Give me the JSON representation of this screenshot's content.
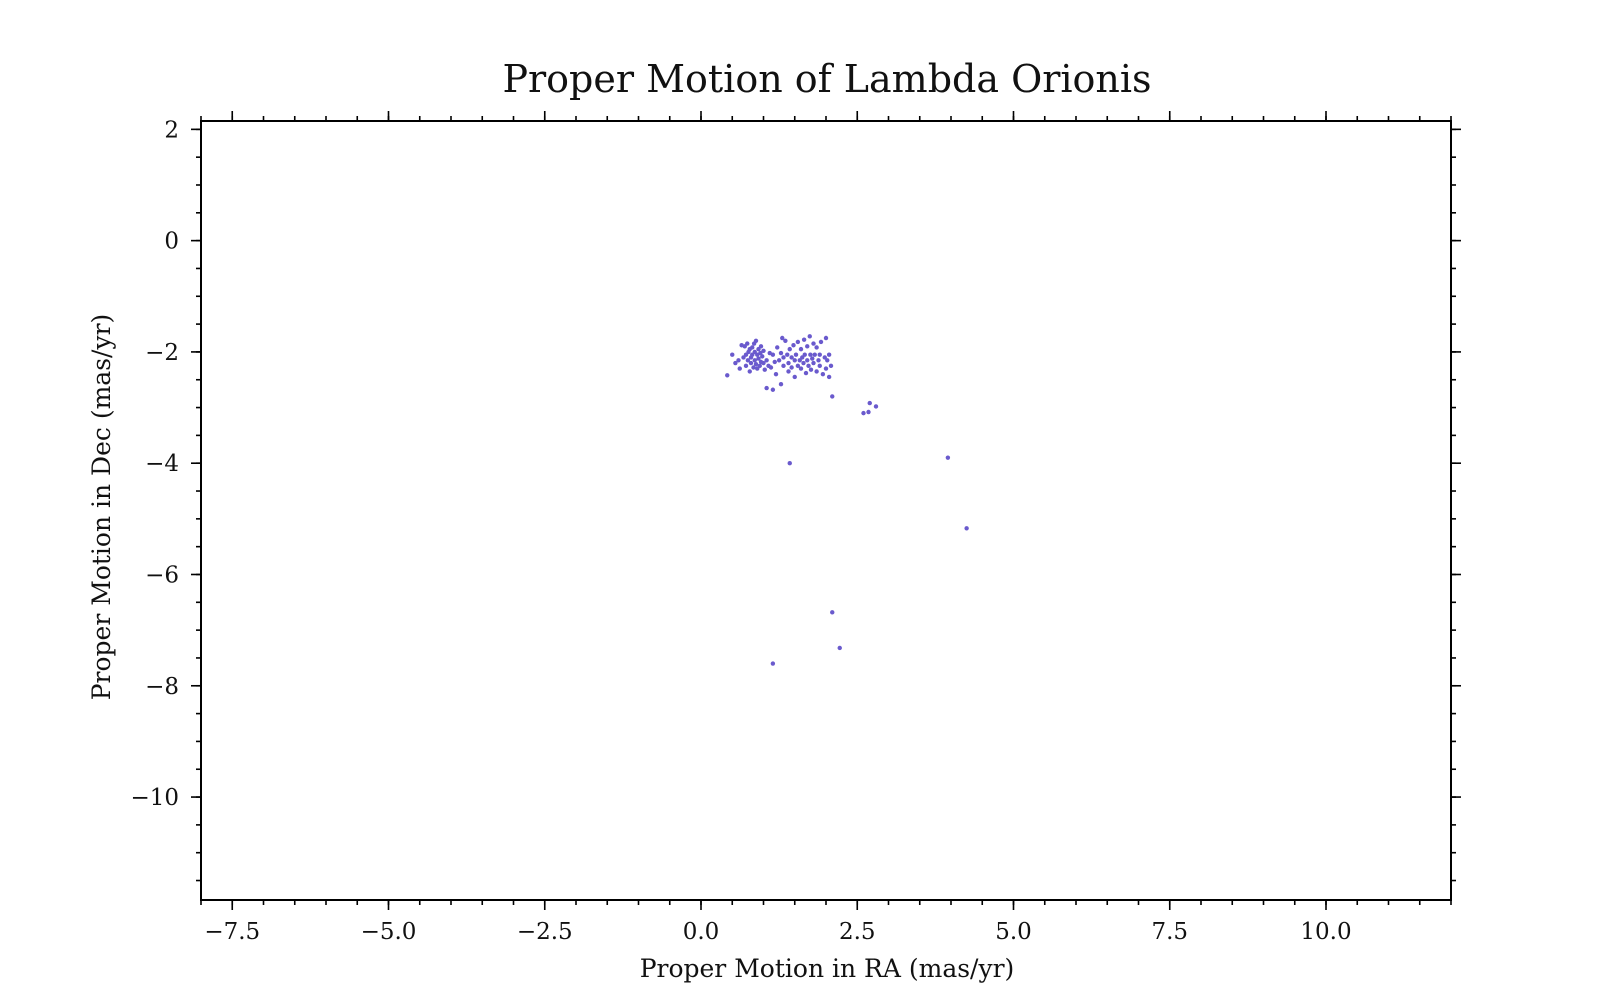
{
  "chart_data": {
    "type": "scatter",
    "title": "Proper Motion of Lambda Orionis",
    "xlabel": "Proper Motion in RA (mas/yr)",
    "ylabel": "Proper Motion in Dec (mas/yr)",
    "xlim": [
      -8.0,
      12.0
    ],
    "ylim": [
      -11.85,
      2.15
    ],
    "x_ticks": [
      -7.5,
      -5.0,
      -2.5,
      0.0,
      2.5,
      5.0,
      7.5,
      10.0
    ],
    "x_tick_labels": [
      "−7.5",
      "−5.0",
      "−2.5",
      "0.0",
      "2.5",
      "5.0",
      "7.5",
      "10.0"
    ],
    "x_minor_step": 0.5,
    "y_ticks": [
      2,
      0,
      -2,
      -4,
      -6,
      -8,
      -10
    ],
    "y_tick_labels": [
      "2",
      "0",
      "−2",
      "−4",
      "−6",
      "−8",
      "−10"
    ],
    "y_minor_step": 0.5,
    "grid": false,
    "marker_color": "#6a5acd",
    "series": [
      {
        "x": [
          0.42,
          0.5,
          0.55,
          0.6,
          0.62,
          0.65,
          0.68,
          0.7,
          0.72,
          0.72,
          0.74,
          0.75,
          0.76,
          0.78,
          0.78,
          0.8,
          0.8,
          0.82,
          0.82,
          0.84,
          0.85,
          0.86,
          0.86,
          0.88,
          0.88,
          0.9,
          0.9,
          0.92,
          0.92,
          0.94,
          0.95,
          0.96,
          0.96,
          0.98,
          1.0,
          1.0,
          1.02,
          1.05,
          1.08,
          1.1,
          1.12,
          1.15,
          1.18,
          1.2,
          1.22,
          1.25,
          1.28,
          1.3,
          1.32,
          1.32,
          1.35,
          1.38,
          1.4,
          1.4,
          1.42,
          1.45,
          1.45,
          1.48,
          1.5,
          1.5,
          1.52,
          1.55,
          1.55,
          1.58,
          1.6,
          1.6,
          1.62,
          1.64,
          1.65,
          1.66,
          1.68,
          1.7,
          1.7,
          1.72,
          1.74,
          1.75,
          1.76,
          1.78,
          1.8,
          1.8,
          1.82,
          1.85,
          1.85,
          1.88,
          1.9,
          1.9,
          1.92,
          1.95,
          1.98,
          2.0,
          2.0,
          2.02,
          2.05,
          2.05,
          2.08,
          1.05,
          1.15,
          1.28,
          2.1,
          2.6,
          2.7,
          2.8,
          2.68,
          1.42,
          3.95,
          4.25,
          2.1,
          2.22,
          1.15
        ],
        "y": [
          -2.42,
          -2.05,
          -2.2,
          -2.15,
          -2.3,
          -1.88,
          -2.1,
          -1.9,
          -2.25,
          -2.05,
          -1.85,
          -2.15,
          -2.0,
          -2.35,
          -1.95,
          -2.1,
          -2.2,
          -1.92,
          -2.05,
          -2.28,
          -1.85,
          -2.15,
          -2.0,
          -2.22,
          -1.8,
          -2.05,
          -2.3,
          -1.95,
          -2.12,
          -2.25,
          -2.02,
          -1.9,
          -2.18,
          -2.08,
          -2.2,
          -1.98,
          -2.32,
          -2.15,
          -2.25,
          -2.02,
          -2.28,
          -2.05,
          -2.18,
          -2.4,
          -1.92,
          -2.15,
          -2.02,
          -1.75,
          -2.25,
          -2.1,
          -1.8,
          -2.05,
          -2.2,
          -2.35,
          -1.95,
          -2.1,
          -2.28,
          -1.88,
          -2.15,
          -2.45,
          -2.05,
          -1.82,
          -2.25,
          -2.15,
          -1.95,
          -2.3,
          -2.1,
          -2.2,
          -1.78,
          -2.05,
          -2.38,
          -1.9,
          -2.15,
          -2.25,
          -1.72,
          -2.05,
          -2.32,
          -2.12,
          -1.85,
          -2.2,
          -2.05,
          -2.35,
          -1.92,
          -2.15,
          -2.25,
          -2.05,
          -1.82,
          -2.4,
          -2.1,
          -1.75,
          -2.3,
          -2.15,
          -2.05,
          -2.45,
          -2.25,
          -2.65,
          -2.68,
          -2.58,
          -2.8,
          -3.1,
          -2.92,
          -2.98,
          -3.08,
          -4.0,
          -3.9,
          -5.17,
          -6.68,
          -7.32,
          -7.6
        ]
      }
    ]
  }
}
